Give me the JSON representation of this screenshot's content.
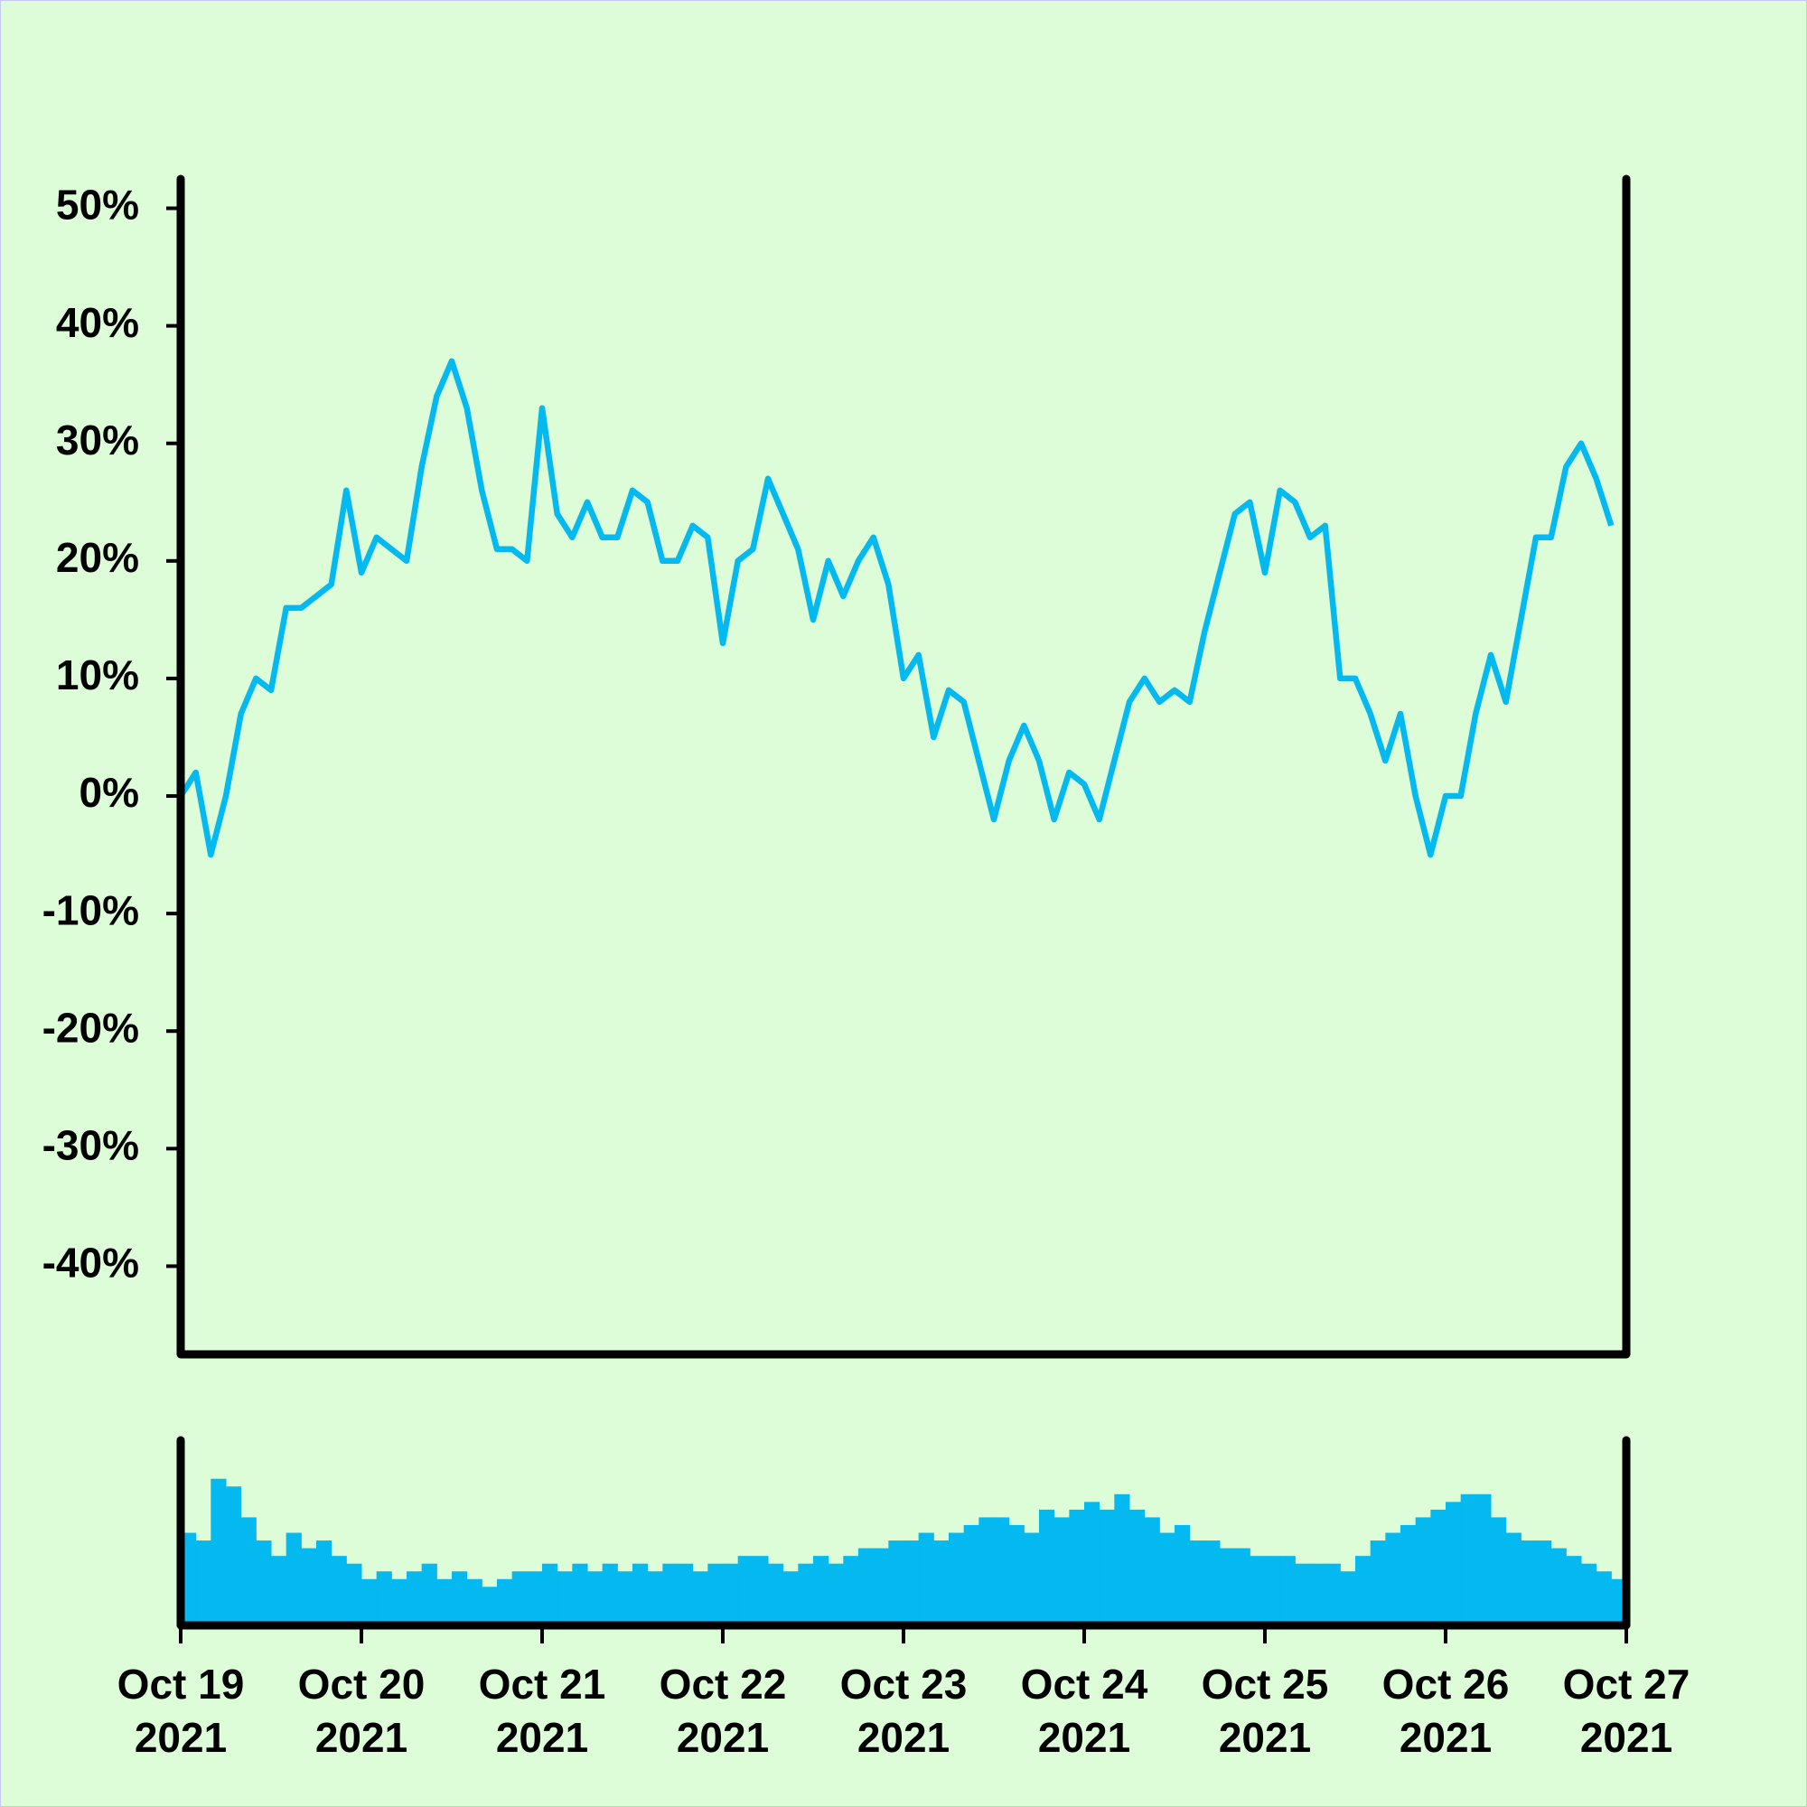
{
  "chart_data": [
    {
      "type": "line",
      "color": "#03b9ef",
      "x": [
        "2021-10-19T00:00",
        "2021-10-19T02:00",
        "2021-10-19T04:00",
        "2021-10-19T06:00",
        "2021-10-19T08:00",
        "2021-10-19T10:00",
        "2021-10-19T12:00",
        "2021-10-19T14:00",
        "2021-10-19T16:00",
        "2021-10-19T18:00",
        "2021-10-19T20:00",
        "2021-10-19T22:00",
        "2021-10-20T00:00",
        "2021-10-20T02:00",
        "2021-10-20T04:00",
        "2021-10-20T06:00",
        "2021-10-20T08:00",
        "2021-10-20T10:00",
        "2021-10-20T12:00",
        "2021-10-20T14:00",
        "2021-10-20T16:00",
        "2021-10-20T18:00",
        "2021-10-20T20:00",
        "2021-10-20T22:00",
        "2021-10-21T00:00",
        "2021-10-21T02:00",
        "2021-10-21T04:00",
        "2021-10-21T06:00",
        "2021-10-21T08:00",
        "2021-10-21T10:00",
        "2021-10-21T12:00",
        "2021-10-21T14:00",
        "2021-10-21T16:00",
        "2021-10-21T18:00",
        "2021-10-21T20:00",
        "2021-10-21T22:00",
        "2021-10-22T00:00",
        "2021-10-22T02:00",
        "2021-10-22T04:00",
        "2021-10-22T06:00",
        "2021-10-22T08:00",
        "2021-10-22T10:00",
        "2021-10-22T12:00",
        "2021-10-22T14:00",
        "2021-10-22T16:00",
        "2021-10-22T18:00",
        "2021-10-22T20:00",
        "2021-10-22T22:00",
        "2021-10-23T00:00",
        "2021-10-23T02:00",
        "2021-10-23T04:00",
        "2021-10-23T06:00",
        "2021-10-23T08:00",
        "2021-10-23T10:00",
        "2021-10-23T12:00",
        "2021-10-23T14:00",
        "2021-10-23T16:00",
        "2021-10-23T18:00",
        "2021-10-23T20:00",
        "2021-10-23T22:00",
        "2021-10-24T00:00",
        "2021-10-24T02:00",
        "2021-10-24T04:00",
        "2021-10-24T06:00",
        "2021-10-24T08:00",
        "2021-10-24T10:00",
        "2021-10-24T12:00",
        "2021-10-24T14:00",
        "2021-10-24T16:00",
        "2021-10-24T18:00",
        "2021-10-24T20:00",
        "2021-10-24T22:00",
        "2021-10-25T00:00",
        "2021-10-25T02:00",
        "2021-10-25T04:00",
        "2021-10-25T06:00",
        "2021-10-25T08:00",
        "2021-10-25T10:00",
        "2021-10-25T12:00",
        "2021-10-25T14:00",
        "2021-10-25T16:00",
        "2021-10-25T18:00",
        "2021-10-25T20:00",
        "2021-10-25T22:00",
        "2021-10-26T00:00",
        "2021-10-26T02:00",
        "2021-10-26T04:00",
        "2021-10-26T06:00",
        "2021-10-26T08:00",
        "2021-10-26T10:00",
        "2021-10-26T12:00",
        "2021-10-26T14:00",
        "2021-10-26T16:00",
        "2021-10-26T18:00",
        "2021-10-26T20:00",
        "2021-10-26T22:00"
      ],
      "values": [
        0,
        2,
        -5,
        0,
        7,
        10,
        9,
        16,
        16,
        17,
        18,
        26,
        19,
        22,
        21,
        20,
        28,
        34,
        37,
        33,
        26,
        21,
        21,
        20,
        33,
        24,
        22,
        25,
        22,
        22,
        26,
        25,
        20,
        20,
        23,
        22,
        13,
        20,
        21,
        27,
        24,
        21,
        15,
        20,
        17,
        20,
        22,
        18,
        10,
        12,
        5,
        9,
        8,
        3,
        -2,
        3,
        6,
        3,
        -2,
        2,
        1,
        -2,
        3,
        8,
        10,
        8,
        9,
        8,
        14,
        19,
        24,
        25,
        19,
        26,
        25,
        22,
        23,
        10,
        10,
        7,
        3,
        7,
        0,
        -5,
        0,
        0,
        7,
        12,
        8,
        15,
        22,
        22,
        28,
        30,
        27,
        23
      ],
      "xlim": [
        "2021-10-19T00:00",
        "2021-10-27T00:00"
      ],
      "ylim": [
        -47.5,
        52.5
      ],
      "yticks": [
        {
          "value": -40,
          "label": "-40%"
        },
        {
          "value": -30,
          "label": "-30%"
        },
        {
          "value": -20,
          "label": "-20%"
        },
        {
          "value": -10,
          "label": "-10%"
        },
        {
          "value": 0,
          "label": "0%"
        },
        {
          "value": 10,
          "label": "10%"
        },
        {
          "value": 20,
          "label": "20%"
        },
        {
          "value": 30,
          "label": "30%"
        },
        {
          "value": 40,
          "label": "40%"
        },
        {
          "value": 50,
          "label": "50%"
        }
      ]
    },
    {
      "type": "bar",
      "color": "#03b9ef",
      "x": [
        "2021-10-19T00:00",
        "2021-10-19T02:00",
        "2021-10-19T04:00",
        "2021-10-19T06:00",
        "2021-10-19T08:00",
        "2021-10-19T10:00",
        "2021-10-19T12:00",
        "2021-10-19T14:00",
        "2021-10-19T16:00",
        "2021-10-19T18:00",
        "2021-10-19T20:00",
        "2021-10-19T22:00",
        "2021-10-20T00:00",
        "2021-10-20T02:00",
        "2021-10-20T04:00",
        "2021-10-20T06:00",
        "2021-10-20T08:00",
        "2021-10-20T10:00",
        "2021-10-20T12:00",
        "2021-10-20T14:00",
        "2021-10-20T16:00",
        "2021-10-20T18:00",
        "2021-10-20T20:00",
        "2021-10-20T22:00",
        "2021-10-21T00:00",
        "2021-10-21T02:00",
        "2021-10-21T04:00",
        "2021-10-21T06:00",
        "2021-10-21T08:00",
        "2021-10-21T10:00",
        "2021-10-21T12:00",
        "2021-10-21T14:00",
        "2021-10-21T16:00",
        "2021-10-21T18:00",
        "2021-10-21T20:00",
        "2021-10-21T22:00",
        "2021-10-22T00:00",
        "2021-10-22T02:00",
        "2021-10-22T04:00",
        "2021-10-22T06:00",
        "2021-10-22T08:00",
        "2021-10-22T10:00",
        "2021-10-22T12:00",
        "2021-10-22T14:00",
        "2021-10-22T16:00",
        "2021-10-22T18:00",
        "2021-10-22T20:00",
        "2021-10-22T22:00",
        "2021-10-23T00:00",
        "2021-10-23T02:00",
        "2021-10-23T04:00",
        "2021-10-23T06:00",
        "2021-10-23T08:00",
        "2021-10-23T10:00",
        "2021-10-23T12:00",
        "2021-10-23T14:00",
        "2021-10-23T16:00",
        "2021-10-23T18:00",
        "2021-10-23T20:00",
        "2021-10-23T22:00",
        "2021-10-24T00:00",
        "2021-10-24T02:00",
        "2021-10-24T04:00",
        "2021-10-24T06:00",
        "2021-10-24T08:00",
        "2021-10-24T10:00",
        "2021-10-24T12:00",
        "2021-10-24T14:00",
        "2021-10-24T16:00",
        "2021-10-24T18:00",
        "2021-10-24T20:00",
        "2021-10-24T22:00",
        "2021-10-25T00:00",
        "2021-10-25T02:00",
        "2021-10-25T04:00",
        "2021-10-25T06:00",
        "2021-10-25T08:00",
        "2021-10-25T10:00",
        "2021-10-25T12:00",
        "2021-10-25T14:00",
        "2021-10-25T16:00",
        "2021-10-25T18:00",
        "2021-10-25T20:00",
        "2021-10-25T22:00",
        "2021-10-26T00:00",
        "2021-10-26T02:00",
        "2021-10-26T04:00",
        "2021-10-26T06:00",
        "2021-10-26T08:00",
        "2021-10-26T10:00",
        "2021-10-26T12:00",
        "2021-10-26T14:00",
        "2021-10-26T16:00",
        "2021-10-26T18:00",
        "2021-10-26T20:00",
        "2021-10-26T22:00"
      ],
      "values": [
        60,
        55,
        95,
        90,
        70,
        55,
        45,
        60,
        50,
        55,
        45,
        40,
        30,
        35,
        30,
        35,
        40,
        30,
        35,
        30,
        25,
        30,
        35,
        35,
        40,
        35,
        40,
        35,
        40,
        35,
        40,
        35,
        40,
        40,
        35,
        40,
        40,
        45,
        45,
        40,
        35,
        40,
        45,
        40,
        45,
        50,
        50,
        55,
        55,
        60,
        55,
        60,
        65,
        70,
        70,
        65,
        60,
        75,
        70,
        75,
        80,
        75,
        85,
        75,
        70,
        60,
        65,
        55,
        55,
        50,
        50,
        45,
        45,
        45,
        40,
        40,
        40,
        35,
        45,
        55,
        60,
        65,
        70,
        75,
        80,
        85,
        85,
        70,
        60,
        55,
        55,
        50,
        45,
        40,
        35,
        30
      ],
      "xlim": [
        "2021-10-19T00:00",
        "2021-10-27T00:00"
      ],
      "ylim": [
        0,
        120
      ],
      "xticks": [
        {
          "value": "2021-10-19T00:00",
          "label": "Oct 19\n2021"
        },
        {
          "value": "2021-10-20T00:00",
          "label": "Oct 20\n2021"
        },
        {
          "value": "2021-10-21T00:00",
          "label": "Oct 21\n2021"
        },
        {
          "value": "2021-10-22T00:00",
          "label": "Oct 22\n2021"
        },
        {
          "value": "2021-10-23T00:00",
          "label": "Oct 23\n2021"
        },
        {
          "value": "2021-10-24T00:00",
          "label": "Oct 24\n2021"
        },
        {
          "value": "2021-10-25T00:00",
          "label": "Oct 25\n2021"
        },
        {
          "value": "2021-10-26T00:00",
          "label": "Oct 26\n2021"
        },
        {
          "value": "2021-10-27T00:00",
          "label": "Oct 27\n2021"
        }
      ]
    }
  ]
}
